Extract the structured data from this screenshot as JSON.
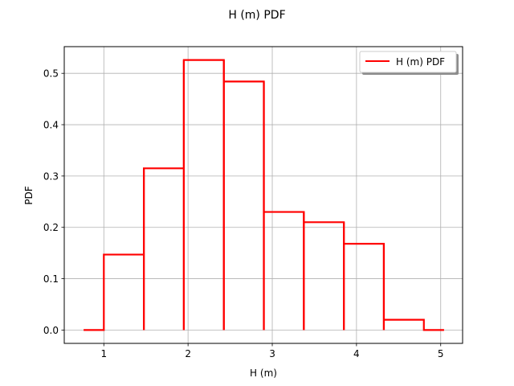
{
  "chart_data": {
    "type": "line",
    "title": "H (m) PDF",
    "xlabel": "H (m)",
    "ylabel": "PDF",
    "xlim": [
      0.53,
      5.26
    ],
    "ylim": [
      -0.026,
      0.552
    ],
    "xticks": [
      1,
      2,
      3,
      4,
      5
    ],
    "xtick_labels": [
      "1",
      "2",
      "3",
      "4",
      "5"
    ],
    "yticks": [
      0.0,
      0.1,
      0.2,
      0.3,
      0.4,
      0.5
    ],
    "ytick_labels": [
      "0.0",
      "0.1",
      "0.2",
      "0.3",
      "0.4",
      "0.5"
    ],
    "grid": true,
    "legend_position": "top-right",
    "bin_edges": [
      1.0,
      1.475,
      1.95,
      2.425,
      2.9,
      3.375,
      3.85,
      4.325,
      4.8
    ],
    "tails": [
      0.76,
      5.04
    ],
    "series": [
      {
        "name": "H (m) PDF",
        "color": "#ff0000",
        "values": [
          0.147,
          0.315,
          0.526,
          0.484,
          0.23,
          0.21,
          0.168,
          0.02
        ]
      }
    ]
  }
}
